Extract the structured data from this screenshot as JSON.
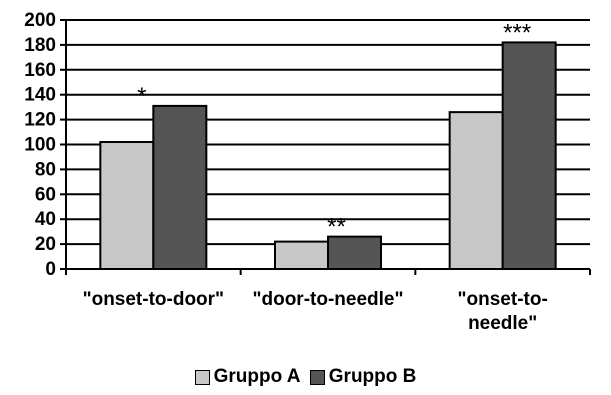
{
  "chart_data": {
    "type": "bar",
    "categories": [
      [
        "\"onset-to-door\""
      ],
      [
        "\"door-to-needle\""
      ],
      [
        "\"onset-to-",
        "needle\""
      ]
    ],
    "series": [
      {
        "name": "Gruppo A",
        "values": [
          102,
          22,
          126
        ],
        "color": "#c8c8c8"
      },
      {
        "name": "Gruppo B",
        "values": [
          131,
          26,
          182
        ],
        "color": "#555555"
      }
    ],
    "annotations": [
      "*",
      "**",
      "***"
    ],
    "ylim": [
      0,
      200
    ],
    "yticks": [
      0,
      20,
      40,
      60,
      80,
      100,
      120,
      140,
      160,
      180,
      200
    ],
    "grid": true,
    "legend_position": "bottom-center",
    "title": "",
    "xlabel": "",
    "ylabel": ""
  }
}
